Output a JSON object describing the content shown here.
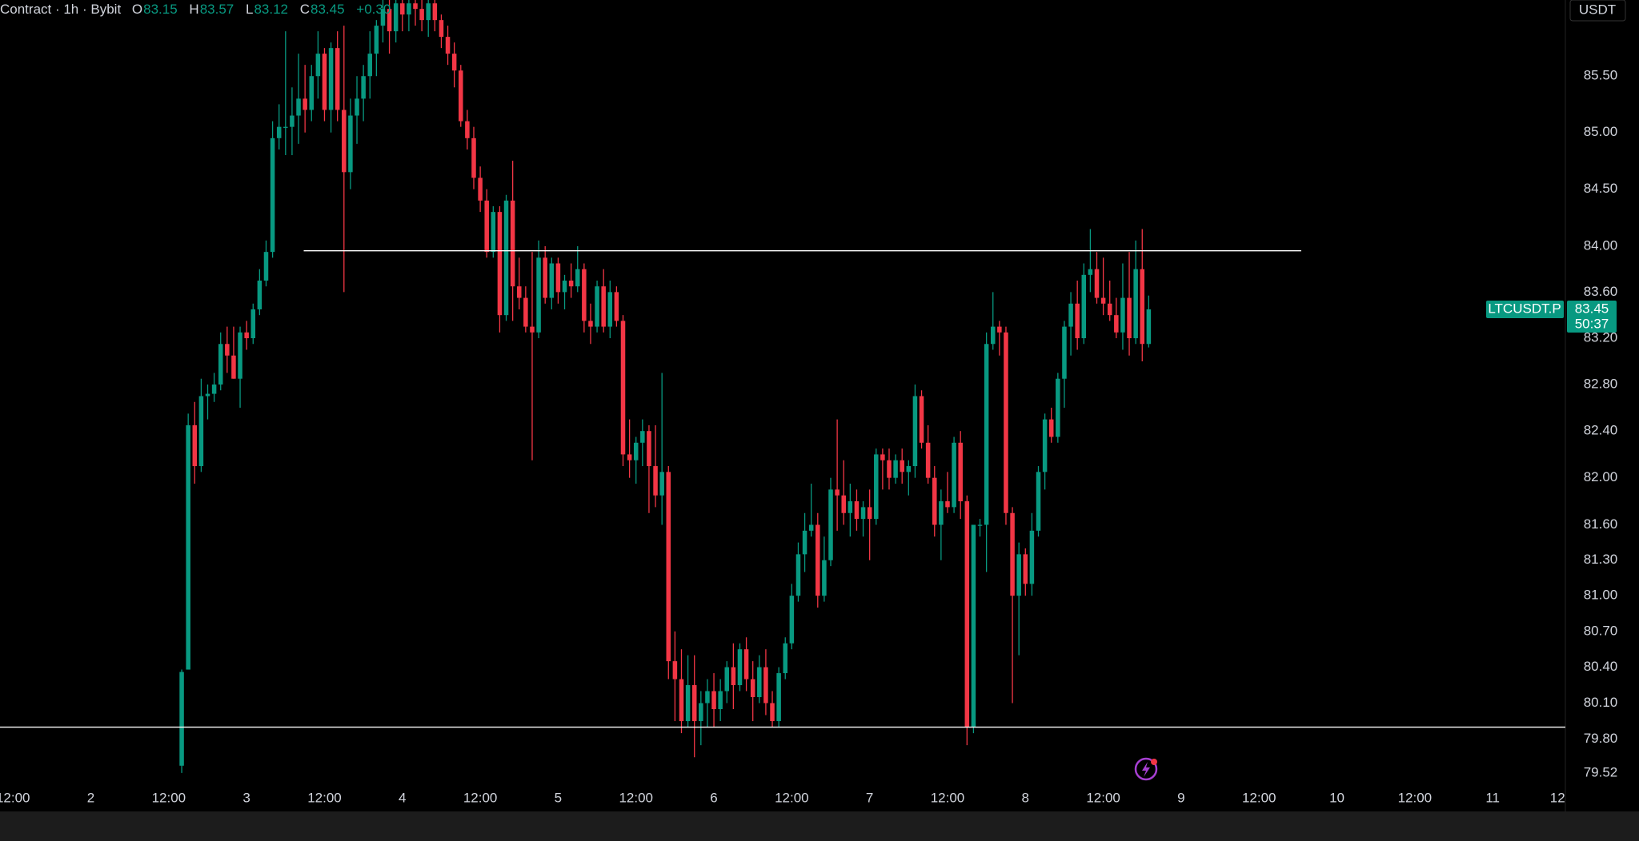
{
  "header": {
    "title": "Contract · 1h · Bybit",
    "o": "O",
    "open": "83.15",
    "h": "H",
    "high": "83.57",
    "l": "L",
    "low": "83.12",
    "c": "C",
    "close": "83.45",
    "change": "+0.30"
  },
  "currency_button": "USDT",
  "chart_data": {
    "type": "candlestick",
    "log_scale": true,
    "grid": false,
    "up_color": "#089981",
    "down_color": "#f23645",
    "xlim": [
      -14,
      227.2
    ],
    "ylim": [
      79.42,
      86.18
    ],
    "xticks": [
      {
        "value": -12,
        "label": "12:00"
      },
      {
        "value": 0,
        "label": "2"
      },
      {
        "value": 12,
        "label": "12:00"
      },
      {
        "value": 24,
        "label": "3"
      },
      {
        "value": 36,
        "label": "12:00"
      },
      {
        "value": 48,
        "label": "4"
      },
      {
        "value": 60,
        "label": "12:00"
      },
      {
        "value": 72,
        "label": "5"
      },
      {
        "value": 84,
        "label": "12:00"
      },
      {
        "value": 96,
        "label": "6"
      },
      {
        "value": 108,
        "label": "12:00"
      },
      {
        "value": 120,
        "label": "7"
      },
      {
        "value": 132,
        "label": "12:00"
      },
      {
        "value": 144,
        "label": "8"
      },
      {
        "value": 156,
        "label": "12:00"
      },
      {
        "value": 168,
        "label": "9"
      },
      {
        "value": 180,
        "label": "12:00"
      },
      {
        "value": 192,
        "label": "10"
      },
      {
        "value": 204,
        "label": "12:00"
      },
      {
        "value": 216,
        "label": "11"
      },
      {
        "value": 226,
        "label": "12"
      }
    ],
    "yticks": [
      {
        "value": 85.5,
        "label": "85.50"
      },
      {
        "value": 85,
        "label": "85.00"
      },
      {
        "value": 84.5,
        "label": "84.50"
      },
      {
        "value": 84,
        "label": "84.00"
      },
      {
        "value": 83.6,
        "label": "83.60"
      },
      {
        "value": 83.2,
        "label": "83.20"
      },
      {
        "value": 82.8,
        "label": "82.80"
      },
      {
        "value": 82.4,
        "label": "82.40"
      },
      {
        "value": 82,
        "label": "82.00"
      },
      {
        "value": 81.6,
        "label": "81.60"
      },
      {
        "value": 81.3,
        "label": "81.30"
      },
      {
        "value": 81,
        "label": "81.00"
      },
      {
        "value": 80.7,
        "label": "80.70"
      },
      {
        "value": 80.4,
        "label": "80.40"
      },
      {
        "value": 80.1,
        "label": "80.10"
      },
      {
        "value": 79.8,
        "label": "79.80"
      },
      {
        "value": 79.52,
        "label": "79.52"
      }
    ],
    "x": [
      14,
      15,
      16,
      17,
      18,
      19,
      20,
      21,
      22,
      23,
      24,
      25,
      26,
      27,
      28,
      29,
      30,
      31,
      32,
      33,
      34,
      35,
      36,
      37,
      38,
      39,
      40,
      41,
      42,
      43,
      44,
      45,
      46,
      47,
      48,
      49,
      50,
      51,
      52,
      53,
      54,
      55,
      56,
      57,
      58,
      59,
      60,
      61,
      62,
      63,
      64,
      65,
      66,
      67,
      68,
      69,
      70,
      71,
      72,
      73,
      74,
      75,
      76,
      77,
      78,
      79,
      80,
      81,
      82,
      83,
      84,
      85,
      86,
      87,
      88,
      89,
      90,
      91,
      92,
      93,
      94,
      95,
      96,
      97,
      98,
      99,
      100,
      101,
      102,
      103,
      104,
      105,
      106,
      107,
      108,
      109,
      110,
      111,
      112,
      113,
      114,
      115,
      116,
      117,
      118,
      119,
      120,
      121,
      122,
      123,
      124,
      125,
      126,
      127,
      128,
      129,
      130,
      131,
      132,
      133,
      134,
      135,
      136,
      137,
      138,
      139,
      140,
      141,
      142,
      143,
      144,
      145,
      146,
      147,
      148,
      149,
      150,
      151,
      152,
      153,
      154,
      155,
      156,
      157,
      158,
      159,
      160,
      161,
      162,
      163
    ],
    "open": [
      79.58,
      80.38,
      82.45,
      82.1,
      82.7,
      82.72,
      82.8,
      83.15,
      83.05,
      82.85,
      83.25,
      83.2,
      83.45,
      83.7,
      83.95,
      84.95,
      85.05,
      85.05,
      85.15,
      85.3,
      85.2,
      85.5,
      85.7,
      85.2,
      85.75,
      85.2,
      84.65,
      85.15,
      85.3,
      85.5,
      85.7,
      85.95,
      86.1,
      85.9,
      86.15,
      86.05,
      86.15,
      86.1,
      86.0,
      86.15,
      86.0,
      85.85,
      85.7,
      85.55,
      85.1,
      84.95,
      84.6,
      84.4,
      83.95,
      84.3,
      83.4,
      84.4,
      83.65,
      83.55,
      83.3,
      83.25,
      83.9,
      83.55,
      83.85,
      83.6,
      83.7,
      83.65,
      83.8,
      83.35,
      83.3,
      83.65,
      83.3,
      83.6,
      83.35,
      82.2,
      82.15,
      82.3,
      82.4,
      82.1,
      81.85,
      82.05,
      80.45,
      80.3,
      79.95,
      80.25,
      79.95,
      80.1,
      80.2,
      80.05,
      80.2,
      80.4,
      80.25,
      80.55,
      80.3,
      80.15,
      80.4,
      80.1,
      79.95,
      80.35,
      80.6,
      81.0,
      81.35,
      81.55,
      81.6,
      81.0,
      81.3,
      81.9,
      81.85,
      81.7,
      81.8,
      81.65,
      81.75,
      81.65,
      82.2,
      82.15,
      82.0,
      82.15,
      82.05,
      82.1,
      82.7,
      82.3,
      82.0,
      81.6,
      81.8,
      81.75,
      82.3,
      81.8,
      79.9,
      81.6,
      81.6,
      83.15,
      83.3,
      83.25,
      81.7,
      81.0,
      81.35,
      81.1,
      81.55,
      82.05,
      82.5,
      82.35,
      82.85,
      83.3,
      83.5,
      83.2,
      83.75,
      83.8,
      83.55,
      83.5,
      83.4,
      83.25,
      83.55,
      83.2,
      83.8,
      83.15
    ],
    "high": [
      80.38,
      82.55,
      82.65,
      82.85,
      82.8,
      82.9,
      83.25,
      83.3,
      83.3,
      83.3,
      83.35,
      83.5,
      83.8,
      84.05,
      85.1,
      85.25,
      85.9,
      85.4,
      85.7,
      85.6,
      85.6,
      85.9,
      85.75,
      85.8,
      85.9,
      85.95,
      85.3,
      85.5,
      85.6,
      85.9,
      86.0,
      86.2,
      86.2,
      86.2,
      86.2,
      86.2,
      86.2,
      86.2,
      86.2,
      86.2,
      86.05,
      85.95,
      85.8,
      85.6,
      85.2,
      85.05,
      84.7,
      84.5,
      84.35,
      84.35,
      84.45,
      84.75,
      83.9,
      83.65,
      83.95,
      84.05,
      84.0,
      83.9,
      83.9,
      83.75,
      83.85,
      84.0,
      83.85,
      83.5,
      83.7,
      83.8,
      83.7,
      83.65,
      83.4,
      82.5,
      82.35,
      82.5,
      82.45,
      82.45,
      82.9,
      82.1,
      80.7,
      80.55,
      80.5,
      80.5,
      80.2,
      80.3,
      80.35,
      80.3,
      80.45,
      80.6,
      80.6,
      80.65,
      80.45,
      80.5,
      80.55,
      80.2,
      80.4,
      80.65,
      81.1,
      81.45,
      81.7,
      81.95,
      81.7,
      81.5,
      82.0,
      82.5,
      82.15,
      81.95,
      81.9,
      81.8,
      81.9,
      82.25,
      82.25,
      82.25,
      82.2,
      82.25,
      82.15,
      82.8,
      82.75,
      82.45,
      82.1,
      81.9,
      82.05,
      82.35,
      82.4,
      81.85,
      81.6,
      81.65,
      83.25,
      83.6,
      83.35,
      83.3,
      81.75,
      81.45,
      81.4,
      81.7,
      82.1,
      82.55,
      82.6,
      82.9,
      83.35,
      83.6,
      83.7,
      83.85,
      84.15,
      83.95,
      83.9,
      83.7,
      83.55,
      83.85,
      83.95,
      84.05,
      84.15,
      83.57
    ],
    "low": [
      79.52,
      80.38,
      81.95,
      82.05,
      82.5,
      82.65,
      82.75,
      82.9,
      82.85,
      82.6,
      83.1,
      83.15,
      83.4,
      83.65,
      83.9,
      84.85,
      84.8,
      84.8,
      84.9,
      85.0,
      85.1,
      85.3,
      85.1,
      85.0,
      85.1,
      83.6,
      84.5,
      84.9,
      85.1,
      85.3,
      85.5,
      85.8,
      85.7,
      85.8,
      85.9,
      85.9,
      85.95,
      85.9,
      85.85,
      85.9,
      85.75,
      85.6,
      85.4,
      85.05,
      84.85,
      84.5,
      84.3,
      83.9,
      83.9,
      83.25,
      83.35,
      83.35,
      83.45,
      83.25,
      82.15,
      83.2,
      83.5,
      83.45,
      83.5,
      83.45,
      83.55,
      83.6,
      83.25,
      83.15,
      83.25,
      83.25,
      83.2,
      83.3,
      82.1,
      82.0,
      81.95,
      82.1,
      81.7,
      81.75,
      81.6,
      80.3,
      79.95,
      79.85,
      79.9,
      79.65,
      79.75,
      79.9,
      79.9,
      79.95,
      80.1,
      80.05,
      80.2,
      80.2,
      79.95,
      80.1,
      80.0,
      79.9,
      79.9,
      80.3,
      80.55,
      80.95,
      81.2,
      81.5,
      80.9,
      80.95,
      81.25,
      81.55,
      81.6,
      81.5,
      81.55,
      81.5,
      81.3,
      81.6,
      81.9,
      81.9,
      81.95,
      81.95,
      81.85,
      82.0,
      82.25,
      81.95,
      81.5,
      81.3,
      81.7,
      81.7,
      81.65,
      79.75,
      79.85,
      81.5,
      81.2,
      83.1,
      83.05,
      81.6,
      80.1,
      80.5,
      81.0,
      81.0,
      81.5,
      81.9,
      82.3,
      82.3,
      82.6,
      83.05,
      83.1,
      83.15,
      83.6,
      83.5,
      83.4,
      83.35,
      83.2,
      83.1,
      83.05,
      83.15,
      83.0,
      83.12
    ],
    "close": [
      80.36,
      82.45,
      82.1,
      82.7,
      82.72,
      82.8,
      83.15,
      83.05,
      82.85,
      83.25,
      83.2,
      83.45,
      83.7,
      83.95,
      84.95,
      85.05,
      85.05,
      85.15,
      85.3,
      85.2,
      85.5,
      85.7,
      85.2,
      85.75,
      85.2,
      84.65,
      85.15,
      85.3,
      85.5,
      85.7,
      85.95,
      86.1,
      85.9,
      86.15,
      86.05,
      86.15,
      86.1,
      86.0,
      86.15,
      86.0,
      85.85,
      85.7,
      85.55,
      85.1,
      84.95,
      84.6,
      84.4,
      83.95,
      84.3,
      83.4,
      84.4,
      83.65,
      83.55,
      83.3,
      83.25,
      83.9,
      83.55,
      83.85,
      83.6,
      83.7,
      83.65,
      83.8,
      83.35,
      83.3,
      83.65,
      83.3,
      83.6,
      83.35,
      82.2,
      82.15,
      82.3,
      82.4,
      82.1,
      81.85,
      82.05,
      80.45,
      80.3,
      79.95,
      80.25,
      79.95,
      80.1,
      80.2,
      80.05,
      80.2,
      80.4,
      80.25,
      80.55,
      80.3,
      80.15,
      80.4,
      80.1,
      79.95,
      80.35,
      80.6,
      81.0,
      81.35,
      81.55,
      81.6,
      81.0,
      81.3,
      81.9,
      81.85,
      81.7,
      81.8,
      81.65,
      81.75,
      81.65,
      82.2,
      82.15,
      82.0,
      82.15,
      82.05,
      82.1,
      82.7,
      82.3,
      82.0,
      81.6,
      81.8,
      81.75,
      82.3,
      81.8,
      79.9,
      81.6,
      81.6,
      83.15,
      83.3,
      83.25,
      81.7,
      81.0,
      81.35,
      81.1,
      81.55,
      82.05,
      82.5,
      82.35,
      82.85,
      83.3,
      83.5,
      83.2,
      83.75,
      83.8,
      83.55,
      83.5,
      83.4,
      83.25,
      83.55,
      83.2,
      83.8,
      83.15,
      83.45
    ],
    "hlines": [
      {
        "value": 83.96,
        "from": 32.8,
        "to": 186.5,
        "color": "#ffffff"
      },
      {
        "value": 79.9,
        "color": "#ffffff"
      }
    ],
    "last_price": {
      "symbol": "LTCUSDT.P",
      "value": 83.45,
      "countdown": "50:37",
      "color": "#089981"
    }
  }
}
